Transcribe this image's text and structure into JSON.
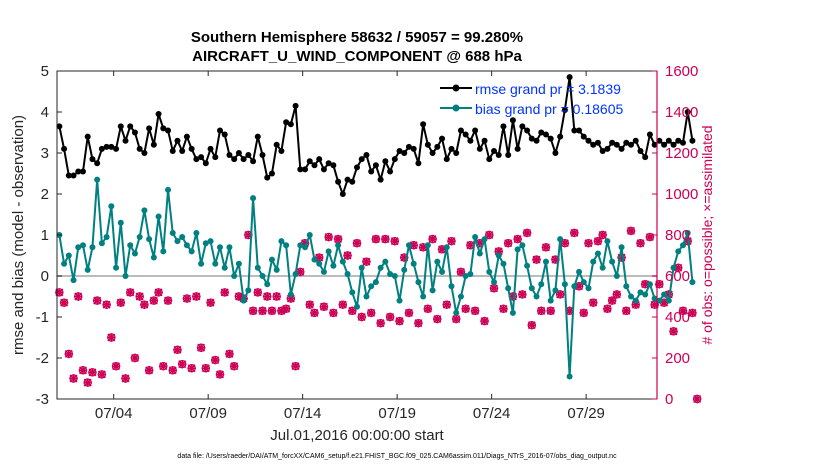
{
  "chart_data": {
    "type": "line",
    "title": "Southern Hemisphere 58632 / 59057 = 99.280%",
    "subtitle": "AIRCRAFT_U_WIND_COMPONENT @ 688 hPa",
    "xlabel": "Jul.01,2016 00:00:00 start",
    "ylabel_left": "rmse and bias (model - observation)",
    "ylabel_right": "# of obs: o=possible; ×=assimilated",
    "footer": "data file: /Users/raeder/DAI/ATM_forcXX/CAM6_setup/f.e21.FHIST_BGC.f09_025.CAM6assim.011/Diags_NTrS_2016-07/obs_diag_output.nc",
    "x_range": [
      1,
      32.75
    ],
    "ylim_left": [
      -3,
      5
    ],
    "ylim_right": [
      0,
      1600
    ],
    "yticks_left": [
      "-3",
      "-2",
      "-1",
      "0",
      "1",
      "2",
      "3",
      "4",
      "5"
    ],
    "yticks_right": [
      "0",
      "200",
      "400",
      "600",
      "800",
      "1000",
      "1200",
      "1400",
      "1600"
    ],
    "xticks": [
      {
        "day": 4,
        "label": "07/04"
      },
      {
        "day": 9,
        "label": "07/09"
      },
      {
        "day": 14,
        "label": "07/14"
      },
      {
        "day": 19,
        "label": "07/19"
      },
      {
        "day": 24,
        "label": "07/24"
      },
      {
        "day": 29,
        "label": "07/29"
      }
    ],
    "x_start": 1.125,
    "x_step": 0.25,
    "zero_line": 0,
    "colors": {
      "rmse": "#000000",
      "bias": "#008080",
      "obs": "#cc0055",
      "zero": "#bbbbbb",
      "right_axis": "#cc0055",
      "legend_text": "#0033ff"
    },
    "legend": [
      {
        "label": "rmse grand pr = 3.1839",
        "series": "rmse"
      },
      {
        "label": "bias grand pr = 0.18605",
        "series": "bias"
      }
    ],
    "series": [
      {
        "name": "rmse",
        "values": [
          3.65,
          3.1,
          2.45,
          2.45,
          2.55,
          2.55,
          3.4,
          2.85,
          2.75,
          3.1,
          3.15,
          3.15,
          3.1,
          3.65,
          3.3,
          3.65,
          3.5,
          3.1,
          3.0,
          3.6,
          3.2,
          3.95,
          3.6,
          3.55,
          3.05,
          3.3,
          3.05,
          3.4,
          3.1,
          2.85,
          2.9,
          2.75,
          3.1,
          2.9,
          3.55,
          3.45,
          2.95,
          2.85,
          3.0,
          2.85,
          2.95,
          2.8,
          3.4,
          2.95,
          2.4,
          2.5,
          3.2,
          3.05,
          3.75,
          3.7,
          4.15,
          2.6,
          2.6,
          2.8,
          2.7,
          2.85,
          2.6,
          2.75,
          2.7,
          2.3,
          2.0,
          2.35,
          2.3,
          2.65,
          2.85,
          2.95,
          2.55,
          2.7,
          2.35,
          2.8,
          2.55,
          2.85,
          3.05,
          3.0,
          3.15,
          3.1,
          2.75,
          3.7,
          3.2,
          3.0,
          3.15,
          3.35,
          2.85,
          3.1,
          3.0,
          3.55,
          3.45,
          3.3,
          3.55,
          3.1,
          3.3,
          2.85,
          3.05,
          2.95,
          3.65,
          2.95,
          3.8,
          3.1,
          3.65,
          3.55,
          3.35,
          3.3,
          3.5,
          3.45,
          3.35,
          3.0,
          3.4,
          4.05,
          4.85,
          3.55,
          3.55,
          3.4,
          3.3,
          3.2,
          3.25,
          3.05,
          3.1,
          3.25,
          3.2,
          3.1,
          3.25,
          3.2,
          3.3,
          3.05,
          2.9,
          3.45,
          3.2,
          3.3,
          3.2,
          3.3,
          3.2,
          3.3,
          3.25,
          4.0,
          3.3
        ],
        "marker": "filled-dot"
      },
      {
        "name": "bias",
        "values": [
          1.0,
          0.3,
          0.5,
          -0.1,
          0.7,
          0.75,
          0.15,
          0.7,
          2.35,
          0.8,
          0.95,
          1.7,
          0.2,
          1.3,
          0.0,
          0.75,
          0.55,
          0.95,
          1.6,
          0.9,
          0.45,
          1.45,
          0.6,
          2.1,
          1.05,
          0.85,
          0.95,
          0.75,
          0.6,
          1.05,
          0.3,
          0.8,
          0.85,
          0.3,
          0.7,
          0.2,
          0.7,
          0.0,
          0.3,
          -0.6,
          -0.35,
          1.9,
          0.2,
          0.0,
          -0.2,
          0.4,
          0.15,
          0.85,
          0.75,
          -0.45,
          0.05,
          0.75,
          0.7,
          1.0,
          0.4,
          0.3,
          0.1,
          0.6,
          0.25,
          0.75,
          0.35,
          0.05,
          -0.4,
          -0.75,
          0.2,
          -0.5,
          -0.25,
          -0.15,
          0.2,
          0.35,
          0.05,
          0.0,
          -0.6,
          0.15,
          0.75,
          0.3,
          -0.15,
          -0.5,
          0.75,
          -0.35,
          0.35,
          0.1,
          0.7,
          -0.25,
          -0.9,
          -0.5,
          0.0,
          0.05,
          0.95,
          0.55,
          0.9,
          0.1,
          -0.15,
          0.5,
          0.3,
          -0.3,
          -0.9,
          0.65,
          0.75,
          0.25,
          -0.3,
          -0.5,
          -0.2,
          0.35,
          -0.6,
          -0.35,
          0.9,
          -0.2,
          -2.45,
          -0.25,
          0.1,
          -0.15,
          -0.3,
          0.35,
          0.55,
          0.2,
          0.85,
          0.35,
          0.0,
          0.7,
          -0.25,
          -0.5,
          -0.6,
          -0.4,
          -0.45,
          -0.2,
          -0.55,
          -0.6,
          -0.45,
          -0.6,
          0.2,
          0.6,
          0.75,
          1.05,
          -0.15
        ],
        "marker": "filled-dot"
      },
      {
        "name": "obs_possible",
        "marker": "o",
        "values": [
          520,
          470,
          220,
          100,
          500,
          140,
          80,
          130,
          480,
          120,
          460,
          300,
          160,
          470,
          100,
          520,
          200,
          500,
          460,
          140,
          480,
          520,
          160,
          480,
          140,
          240,
          170,
          490,
          150,
          500,
          250,
          150,
          470,
          190,
          120,
          520,
          220,
          160,
          500,
          490,
          800,
          430,
          520,
          430,
          500,
          430,
          500,
          430,
          440,
          490,
          160,
          620,
          760,
          460,
          420,
          690,
          450,
          790,
          420,
          780,
          460,
          700,
          430,
          760,
          400,
          670,
          420,
          780,
          370,
          780,
          400,
          770,
          380,
          690,
          420,
          750,
          370,
          740,
          440,
          780,
          390,
          730,
          460,
          770,
          390,
          620,
          440,
          750,
          430,
          760,
          380,
          800,
          540,
          720,
          440,
          760,
          500,
          780,
          510,
          810,
          360,
          680,
          430,
          740,
          430,
          680,
          510,
          760,
          430,
          810,
          550,
          420,
          760,
          470,
          770,
          800,
          440,
          480,
          510,
          690,
          430,
          820,
          460,
          760,
          560,
          790,
          460,
          560,
          470,
          510,
          330,
          640,
          430,
          770,
          420,
          0
        ]
      },
      {
        "name": "obs_assimilated",
        "marker": "x",
        "values": [
          520,
          470,
          220,
          100,
          500,
          140,
          80,
          130,
          480,
          120,
          460,
          300,
          160,
          470,
          100,
          520,
          200,
          500,
          460,
          140,
          480,
          520,
          160,
          480,
          140,
          240,
          170,
          490,
          150,
          500,
          250,
          150,
          470,
          190,
          120,
          520,
          220,
          160,
          500,
          490,
          800,
          430,
          520,
          430,
          500,
          430,
          500,
          430,
          440,
          490,
          160,
          620,
          760,
          460,
          420,
          690,
          450,
          790,
          420,
          780,
          460,
          700,
          430,
          760,
          400,
          670,
          420,
          780,
          370,
          780,
          400,
          770,
          380,
          690,
          420,
          750,
          370,
          740,
          440,
          780,
          390,
          730,
          460,
          770,
          390,
          620,
          440,
          750,
          430,
          760,
          380,
          800,
          540,
          720,
          440,
          760,
          500,
          780,
          510,
          810,
          360,
          680,
          430,
          740,
          430,
          680,
          510,
          760,
          430,
          810,
          550,
          420,
          760,
          470,
          770,
          800,
          440,
          480,
          510,
          690,
          430,
          820,
          460,
          760,
          560,
          790,
          460,
          560,
          470,
          510,
          330,
          640,
          430,
          770,
          420,
          0
        ]
      }
    ]
  }
}
